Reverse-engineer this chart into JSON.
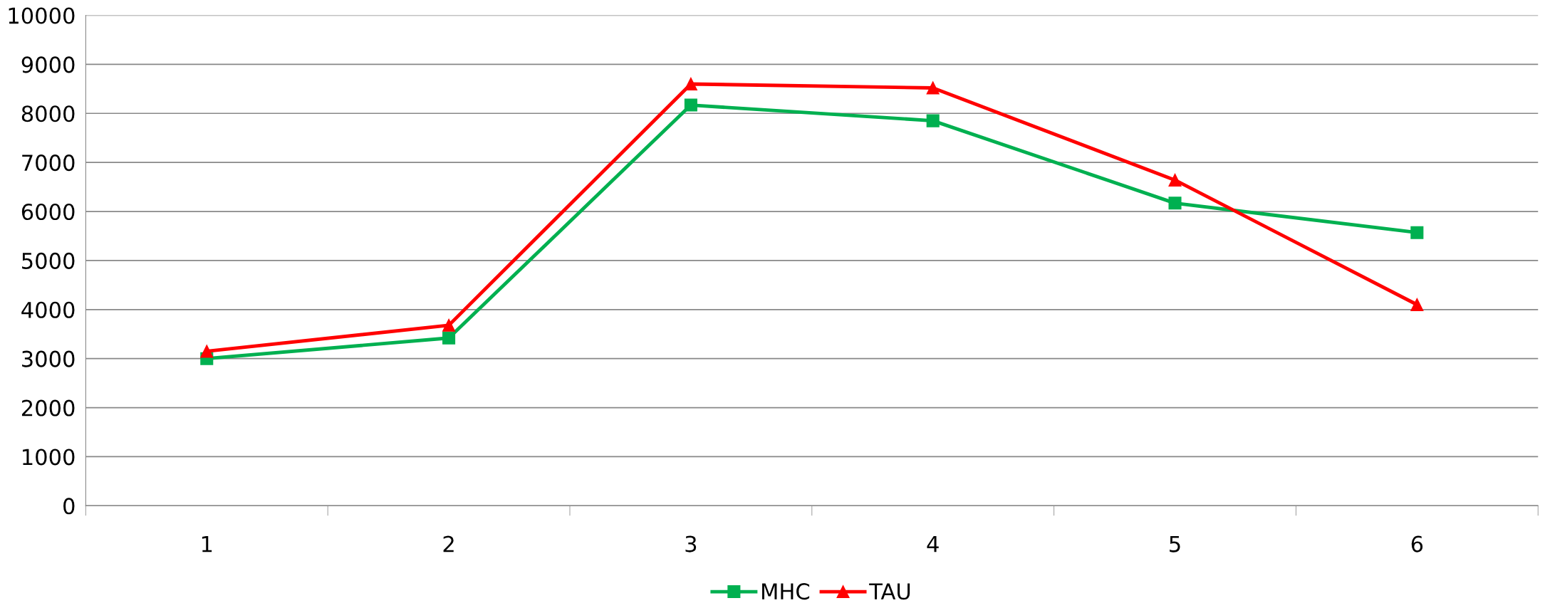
{
  "chart_data": {
    "type": "line",
    "categories": [
      "1",
      "2",
      "3",
      "4",
      "5",
      "6"
    ],
    "series": [
      {
        "name": "MHC",
        "color": "#00b050",
        "marker": "square",
        "values": [
          3000,
          3420,
          8170,
          7850,
          6170,
          5570
        ]
      },
      {
        "name": "TAU",
        "color": "#ff0000",
        "marker": "triangle",
        "values": [
          3150,
          3680,
          8600,
          8520,
          6640,
          4100
        ]
      }
    ],
    "ylim": [
      0,
      10000
    ],
    "yticks": [
      0,
      1000,
      2000,
      3000,
      4000,
      5000,
      6000,
      7000,
      8000,
      9000,
      10000
    ],
    "grid": "y",
    "legend": "bottom",
    "line_style": "solid"
  }
}
